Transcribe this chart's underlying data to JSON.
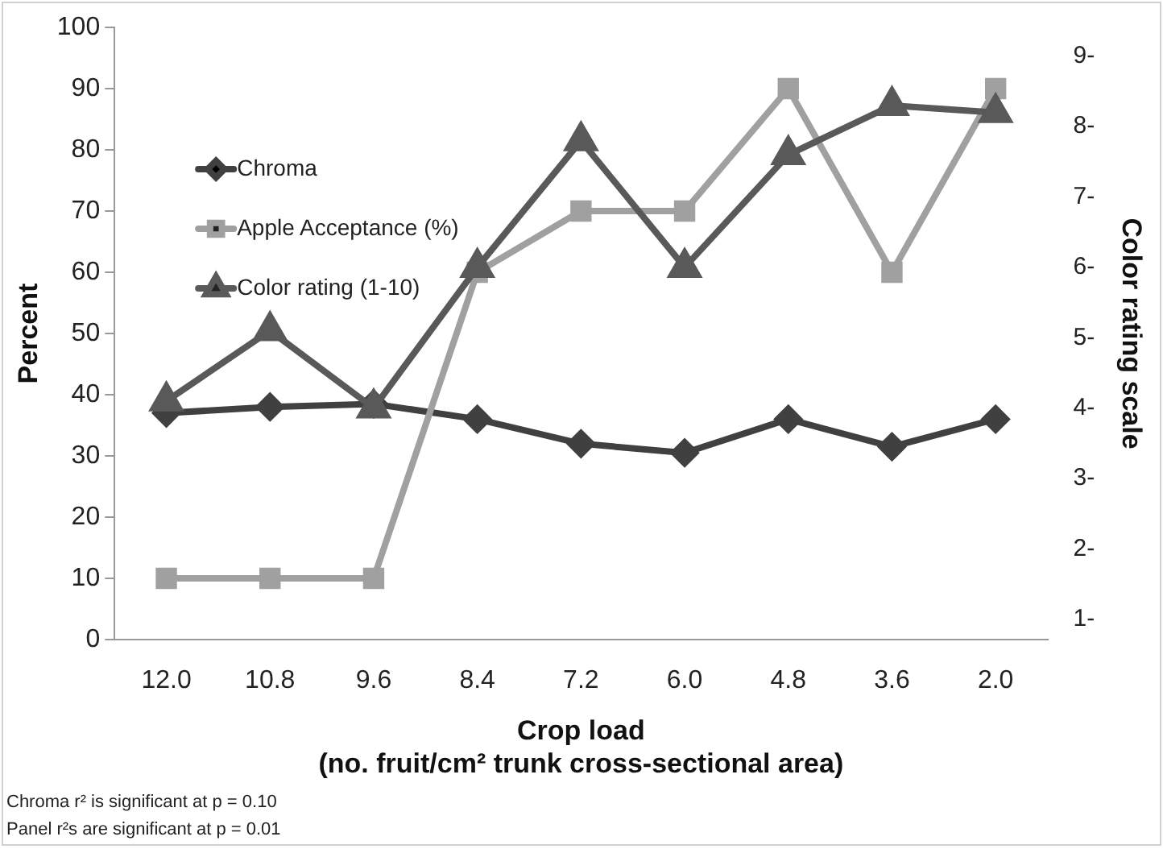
{
  "chart_data": {
    "type": "line",
    "xlabel": "Crop load\n(no. fruit/cm² trunk cross-sectional area)",
    "ylabel": "Percent",
    "y2label": "Color rating scale",
    "categories": [
      "12.0",
      "10.8",
      "9.6",
      "8.4",
      "7.2",
      "6.0",
      "4.8",
      "3.6",
      "2.0"
    ],
    "series": [
      {
        "name": "Chroma",
        "color": "#404040",
        "marker": "diamond",
        "values": [
          37,
          38,
          38.5,
          36,
          32,
          30.5,
          36,
          31.5,
          36
        ]
      },
      {
        "name": "Apple Acceptance (%)",
        "color": "#a0a0a0",
        "marker": "square",
        "values": [
          10,
          10,
          10,
          60,
          70,
          70,
          90,
          60,
          90
        ]
      },
      {
        "name": "Color rating (1-10)",
        "color": "#595959",
        "marker": "triangle",
        "axis": "y2",
        "values": [
          4.1,
          5.1,
          4.0,
          6.0,
          7.8,
          6.0,
          7.6,
          8.3,
          8.2
        ]
      }
    ],
    "ylim": [
      0,
      100
    ],
    "yticks": [
      0,
      10,
      20,
      30,
      40,
      50,
      60,
      70,
      80,
      90,
      100
    ],
    "y2lim": [
      0.71,
      9.41
    ],
    "y2ticks": [
      {
        "value": 1,
        "label": "1-"
      },
      {
        "value": 2,
        "label": "2-"
      },
      {
        "value": 3,
        "label": "3-"
      },
      {
        "value": 4,
        "label": "4-"
      },
      {
        "value": 5,
        "label": "5-"
      },
      {
        "value": 6,
        "label": "6-"
      },
      {
        "value": 7,
        "label": "7-"
      },
      {
        "value": 8,
        "label": "8-"
      },
      {
        "value": 9,
        "label": "9-"
      }
    ],
    "grid": false,
    "legend": "top left",
    "line_style": "solid",
    "annotations": [
      "Chroma r² is significant at p = 0.10",
      "Panel r²s are significant at p = 0.01"
    ]
  }
}
